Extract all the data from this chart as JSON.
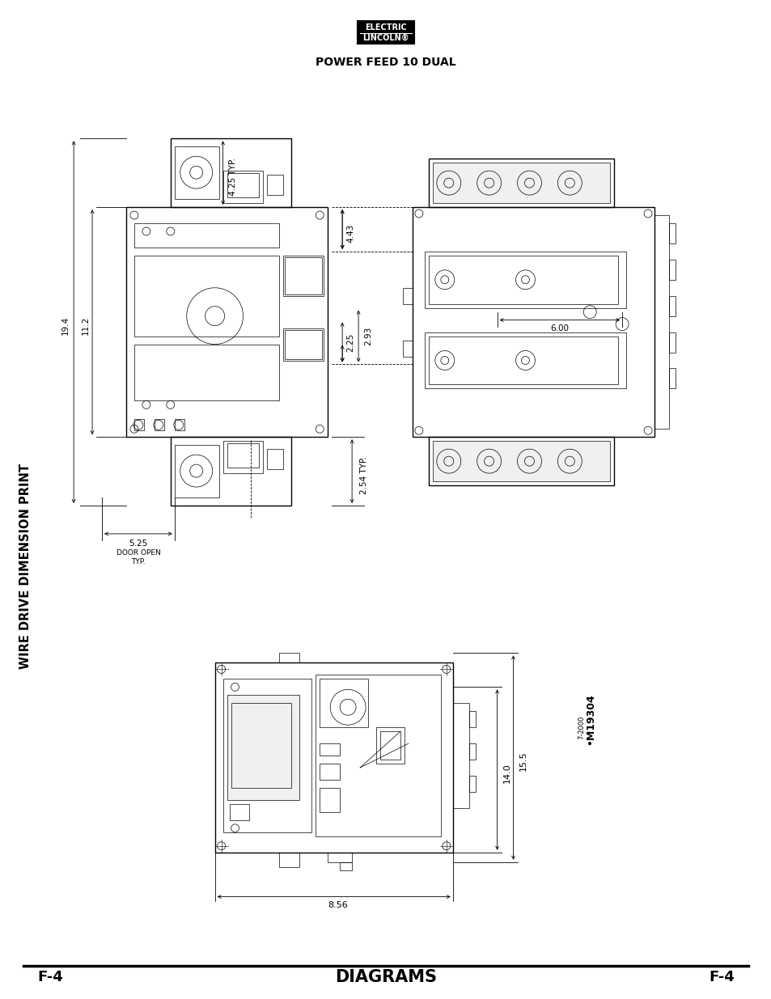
{
  "page_width": 9.54,
  "page_height": 12.35,
  "dpi": 100,
  "bg": "#ffffff",
  "lc": "#000000",
  "header_left": "F-4",
  "header_center": "DIAGRAMS",
  "header_right": "F-4",
  "side_label": "WIRE DRIVE DIMENSION PRINT",
  "footer_title": "POWER FEED 10 DUAL",
  "model_id": "M19304",
  "model_date": "7-2000",
  "dims": {
    "top_856": "8.56",
    "top_140": "14.0",
    "top_155": "15.5",
    "f_525": "5.25",
    "f_door": "DOOR OPEN",
    "f_typ1": "TYP.",
    "f_254": "2.54 TYP.",
    "f_194": "19.4",
    "f_112": "11.2",
    "f_225": "2.25",
    "f_293": "2.93",
    "f_443": "4.43",
    "f_600": "6.00",
    "f_425": "4.25 TYP."
  }
}
